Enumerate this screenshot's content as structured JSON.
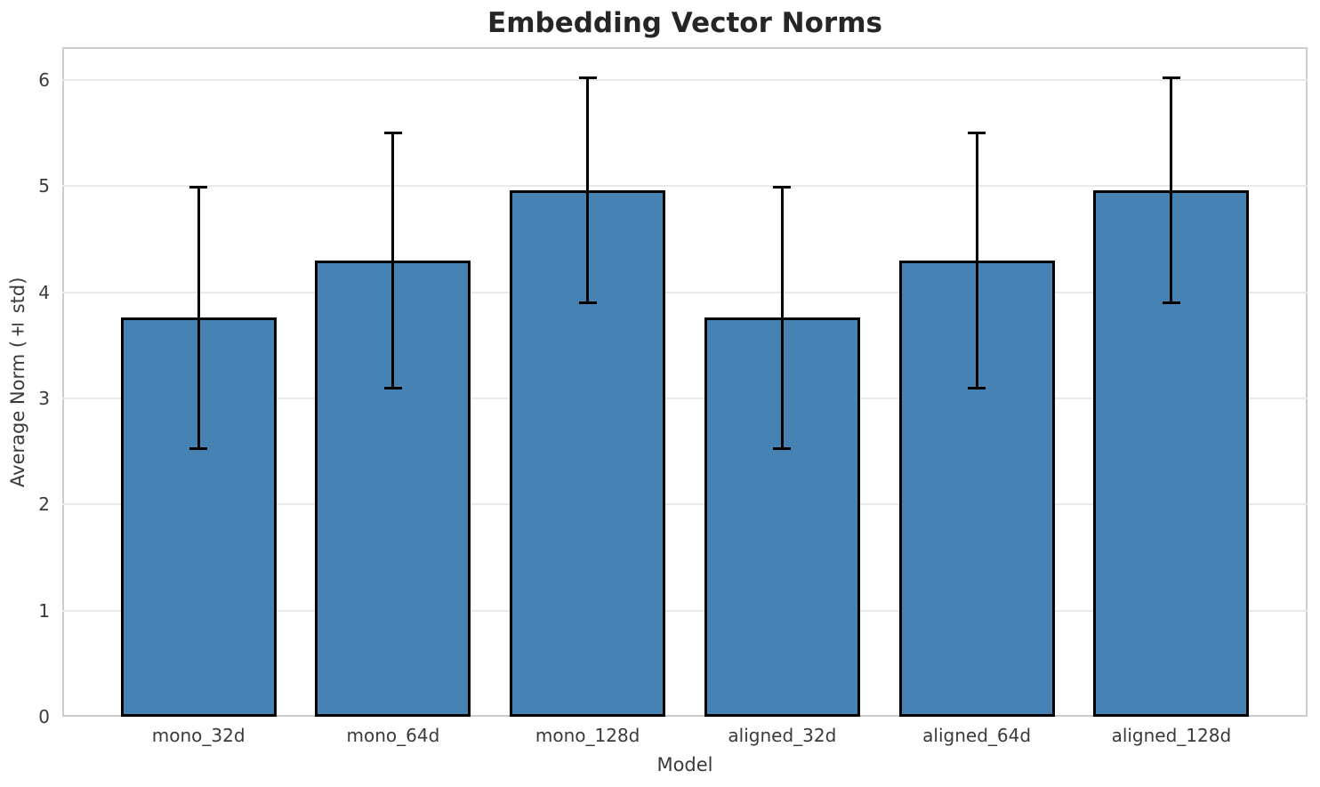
{
  "chart_data": {
    "type": "bar",
    "title": "Embedding Vector Norms",
    "xlabel": "Model",
    "ylabel": "Average Norm (± std)",
    "categories": [
      "mono_32d",
      "mono_64d",
      "mono_128d",
      "aligned_32d",
      "aligned_64d",
      "aligned_128d"
    ],
    "values": [
      3.76,
      4.3,
      4.96,
      3.76,
      4.3,
      4.96
    ],
    "errors": [
      1.23,
      1.2,
      1.06,
      1.23,
      1.2,
      1.06
    ],
    "ylim": [
      0,
      6.31
    ],
    "yticks": [
      0,
      1,
      2,
      3,
      4,
      5,
      6
    ],
    "grid": true,
    "legend_position": "none",
    "error_caps": true,
    "colors": {
      "bar_fill": "#4682B4",
      "bar_edge": "#000000",
      "error_bar": "#000000",
      "gridline": "#e9e9e9",
      "spine": "#cccccc",
      "title_text": "#262626",
      "tick_text": "#3a3a3a",
      "label_text": "#3a3a3a",
      "background": "#ffffff"
    }
  }
}
